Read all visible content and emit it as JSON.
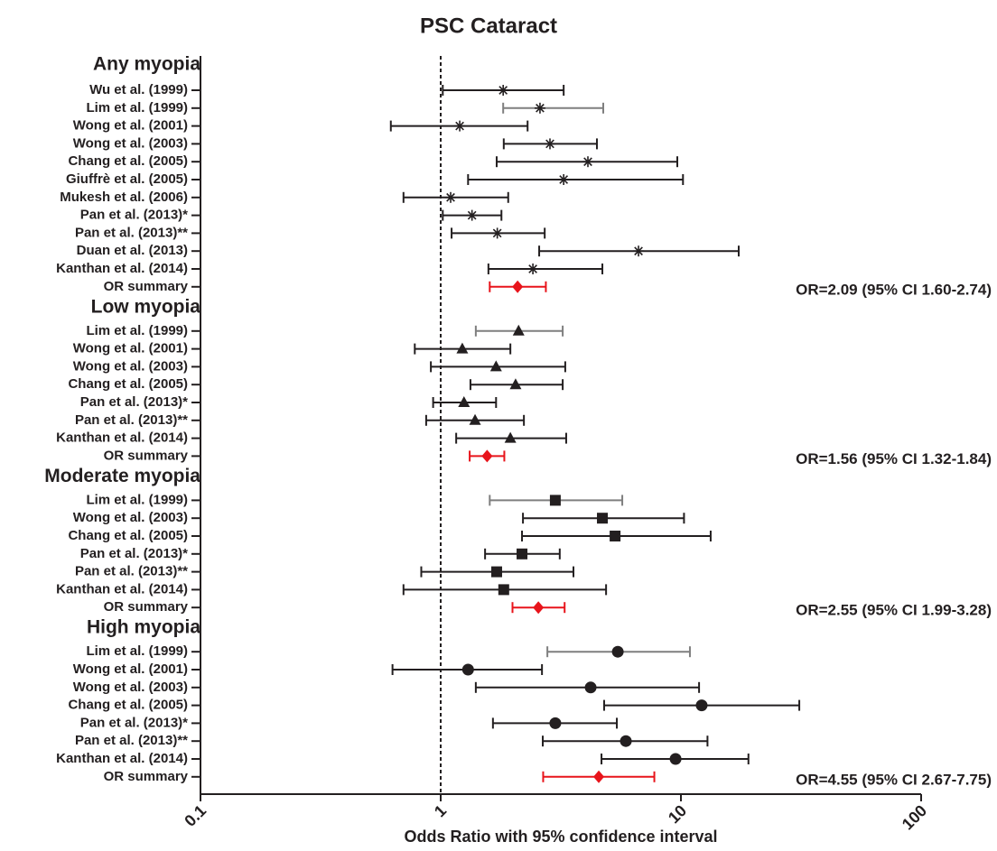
{
  "chart_data": {
    "type": "forest",
    "title": "PSC Cataract",
    "x_label": "Odds Ratio with 95% confidence interval",
    "xscale": "log",
    "xlim": [
      0.1,
      100
    ],
    "xticks": [
      0.1,
      1,
      10,
      100
    ],
    "reference_line": 1,
    "groups": [
      {
        "name": "Any myopia",
        "marker": "asterisk",
        "color": "#231f20",
        "studies": [
          {
            "label": "Wu et al. (1999)",
            "or": 1.82,
            "lower": 1.02,
            "upper": 3.25
          },
          {
            "label": "Lim et al. (1999)",
            "or": 2.59,
            "lower": 1.82,
            "upper": 4.75,
            "ci_color": "#7f7f7f"
          },
          {
            "label": "Wong et al. (2001)",
            "or": 1.2,
            "lower": 0.62,
            "upper": 2.3
          },
          {
            "label": "Wong et al. (2003)",
            "or": 2.85,
            "lower": 1.83,
            "upper": 4.47
          },
          {
            "label": "Chang et al. (2005)",
            "or": 4.1,
            "lower": 1.71,
            "upper": 9.66
          },
          {
            "label": "Giuffrè et al. (2005)",
            "or": 3.25,
            "lower": 1.3,
            "upper": 10.2
          },
          {
            "label": "Mukesh et al. (2006)",
            "or": 1.1,
            "lower": 0.7,
            "upper": 1.91
          },
          {
            "label": "Pan et al. (2013)*",
            "or": 1.35,
            "lower": 1.02,
            "upper": 1.79
          },
          {
            "label": "Pan et al. (2013)**",
            "or": 1.72,
            "lower": 1.11,
            "upper": 2.71
          },
          {
            "label": "Duan et al. (2013)",
            "or": 6.66,
            "lower": 2.57,
            "upper": 17.4
          },
          {
            "label": "Kanthan et al. (2014)",
            "or": 2.42,
            "lower": 1.58,
            "upper": 4.71
          }
        ],
        "summary": {
          "label": "OR summary",
          "or": 2.09,
          "lower": 1.6,
          "upper": 2.74,
          "text": "OR=2.09 (95% CI 1.60-2.74)",
          "color": "#e8141b"
        }
      },
      {
        "name": "Low myopia",
        "marker": "triangle",
        "color": "#231f20",
        "studies": [
          {
            "label": "Lim et al. (1999)",
            "or": 2.11,
            "lower": 1.4,
            "upper": 3.22,
            "ci_color": "#7f7f7f"
          },
          {
            "label": "Wong et al. (2001)",
            "or": 1.23,
            "lower": 0.78,
            "upper": 1.95
          },
          {
            "label": "Wong et al. (2003)",
            "or": 1.7,
            "lower": 0.91,
            "upper": 3.3
          },
          {
            "label": "Chang et al. (2005)",
            "or": 2.05,
            "lower": 1.33,
            "upper": 3.22
          },
          {
            "label": "Pan et al. (2013)*",
            "or": 1.25,
            "lower": 0.93,
            "upper": 1.7
          },
          {
            "label": "Pan et al. (2013)**",
            "or": 1.39,
            "lower": 0.87,
            "upper": 2.22
          },
          {
            "label": "Kanthan et al. (2014)",
            "or": 1.95,
            "lower": 1.16,
            "upper": 3.33
          }
        ],
        "summary": {
          "label": "OR summary",
          "or": 1.56,
          "lower": 1.32,
          "upper": 1.84,
          "text": "OR=1.56 (95% CI 1.32-1.84)",
          "color": "#e8141b"
        }
      },
      {
        "name": "Moderate myopia",
        "marker": "square",
        "color": "#231f20",
        "studies": [
          {
            "label": "Lim et al. (1999)",
            "or": 3.0,
            "lower": 1.6,
            "upper": 5.7,
            "ci_color": "#7f7f7f"
          },
          {
            "label": "Wong et al. (2003)",
            "or": 4.71,
            "lower": 2.2,
            "upper": 10.3
          },
          {
            "label": "Chang et al. (2005)",
            "or": 5.32,
            "lower": 2.18,
            "upper": 13.3
          },
          {
            "label": "Pan et al. (2013)*",
            "or": 2.18,
            "lower": 1.53,
            "upper": 3.13
          },
          {
            "label": "Pan et al. (2013)**",
            "or": 1.71,
            "lower": 0.83,
            "upper": 3.57
          },
          {
            "label": "Kanthan et al. (2014)",
            "or": 1.83,
            "lower": 0.7,
            "upper": 4.88
          }
        ],
        "summary": {
          "label": "OR summary",
          "or": 2.55,
          "lower": 1.99,
          "upper": 3.28,
          "text": "OR=2.55 (95% CI 1.99-3.28)",
          "color": "#e8141b"
        }
      },
      {
        "name": "High myopia",
        "marker": "circle",
        "color": "#231f20",
        "studies": [
          {
            "label": "Lim et al. (1999)",
            "or": 5.46,
            "lower": 2.78,
            "upper": 10.9,
            "ci_color": "#7f7f7f"
          },
          {
            "label": "Wong et al. (2001)",
            "or": 1.3,
            "lower": 0.63,
            "upper": 2.64
          },
          {
            "label": "Wong et al. (2003)",
            "or": 4.21,
            "lower": 1.4,
            "upper": 11.9
          },
          {
            "label": "Chang et al. (2005)",
            "or": 12.2,
            "lower": 4.79,
            "upper": 31.1
          },
          {
            "label": "Pan et al. (2013)*",
            "or": 3.0,
            "lower": 1.65,
            "upper": 5.41
          },
          {
            "label": "Pan et al. (2013)**",
            "or": 5.9,
            "lower": 2.66,
            "upper": 12.9
          },
          {
            "label": "Kanthan et al. (2014)",
            "or": 9.5,
            "lower": 4.67,
            "upper": 19.1
          }
        ],
        "summary": {
          "label": "OR summary",
          "or": 4.55,
          "lower": 2.67,
          "upper": 7.75,
          "text": "OR=4.55 (95% CI 2.67-7.75)",
          "color": "#e8141b"
        }
      }
    ]
  }
}
